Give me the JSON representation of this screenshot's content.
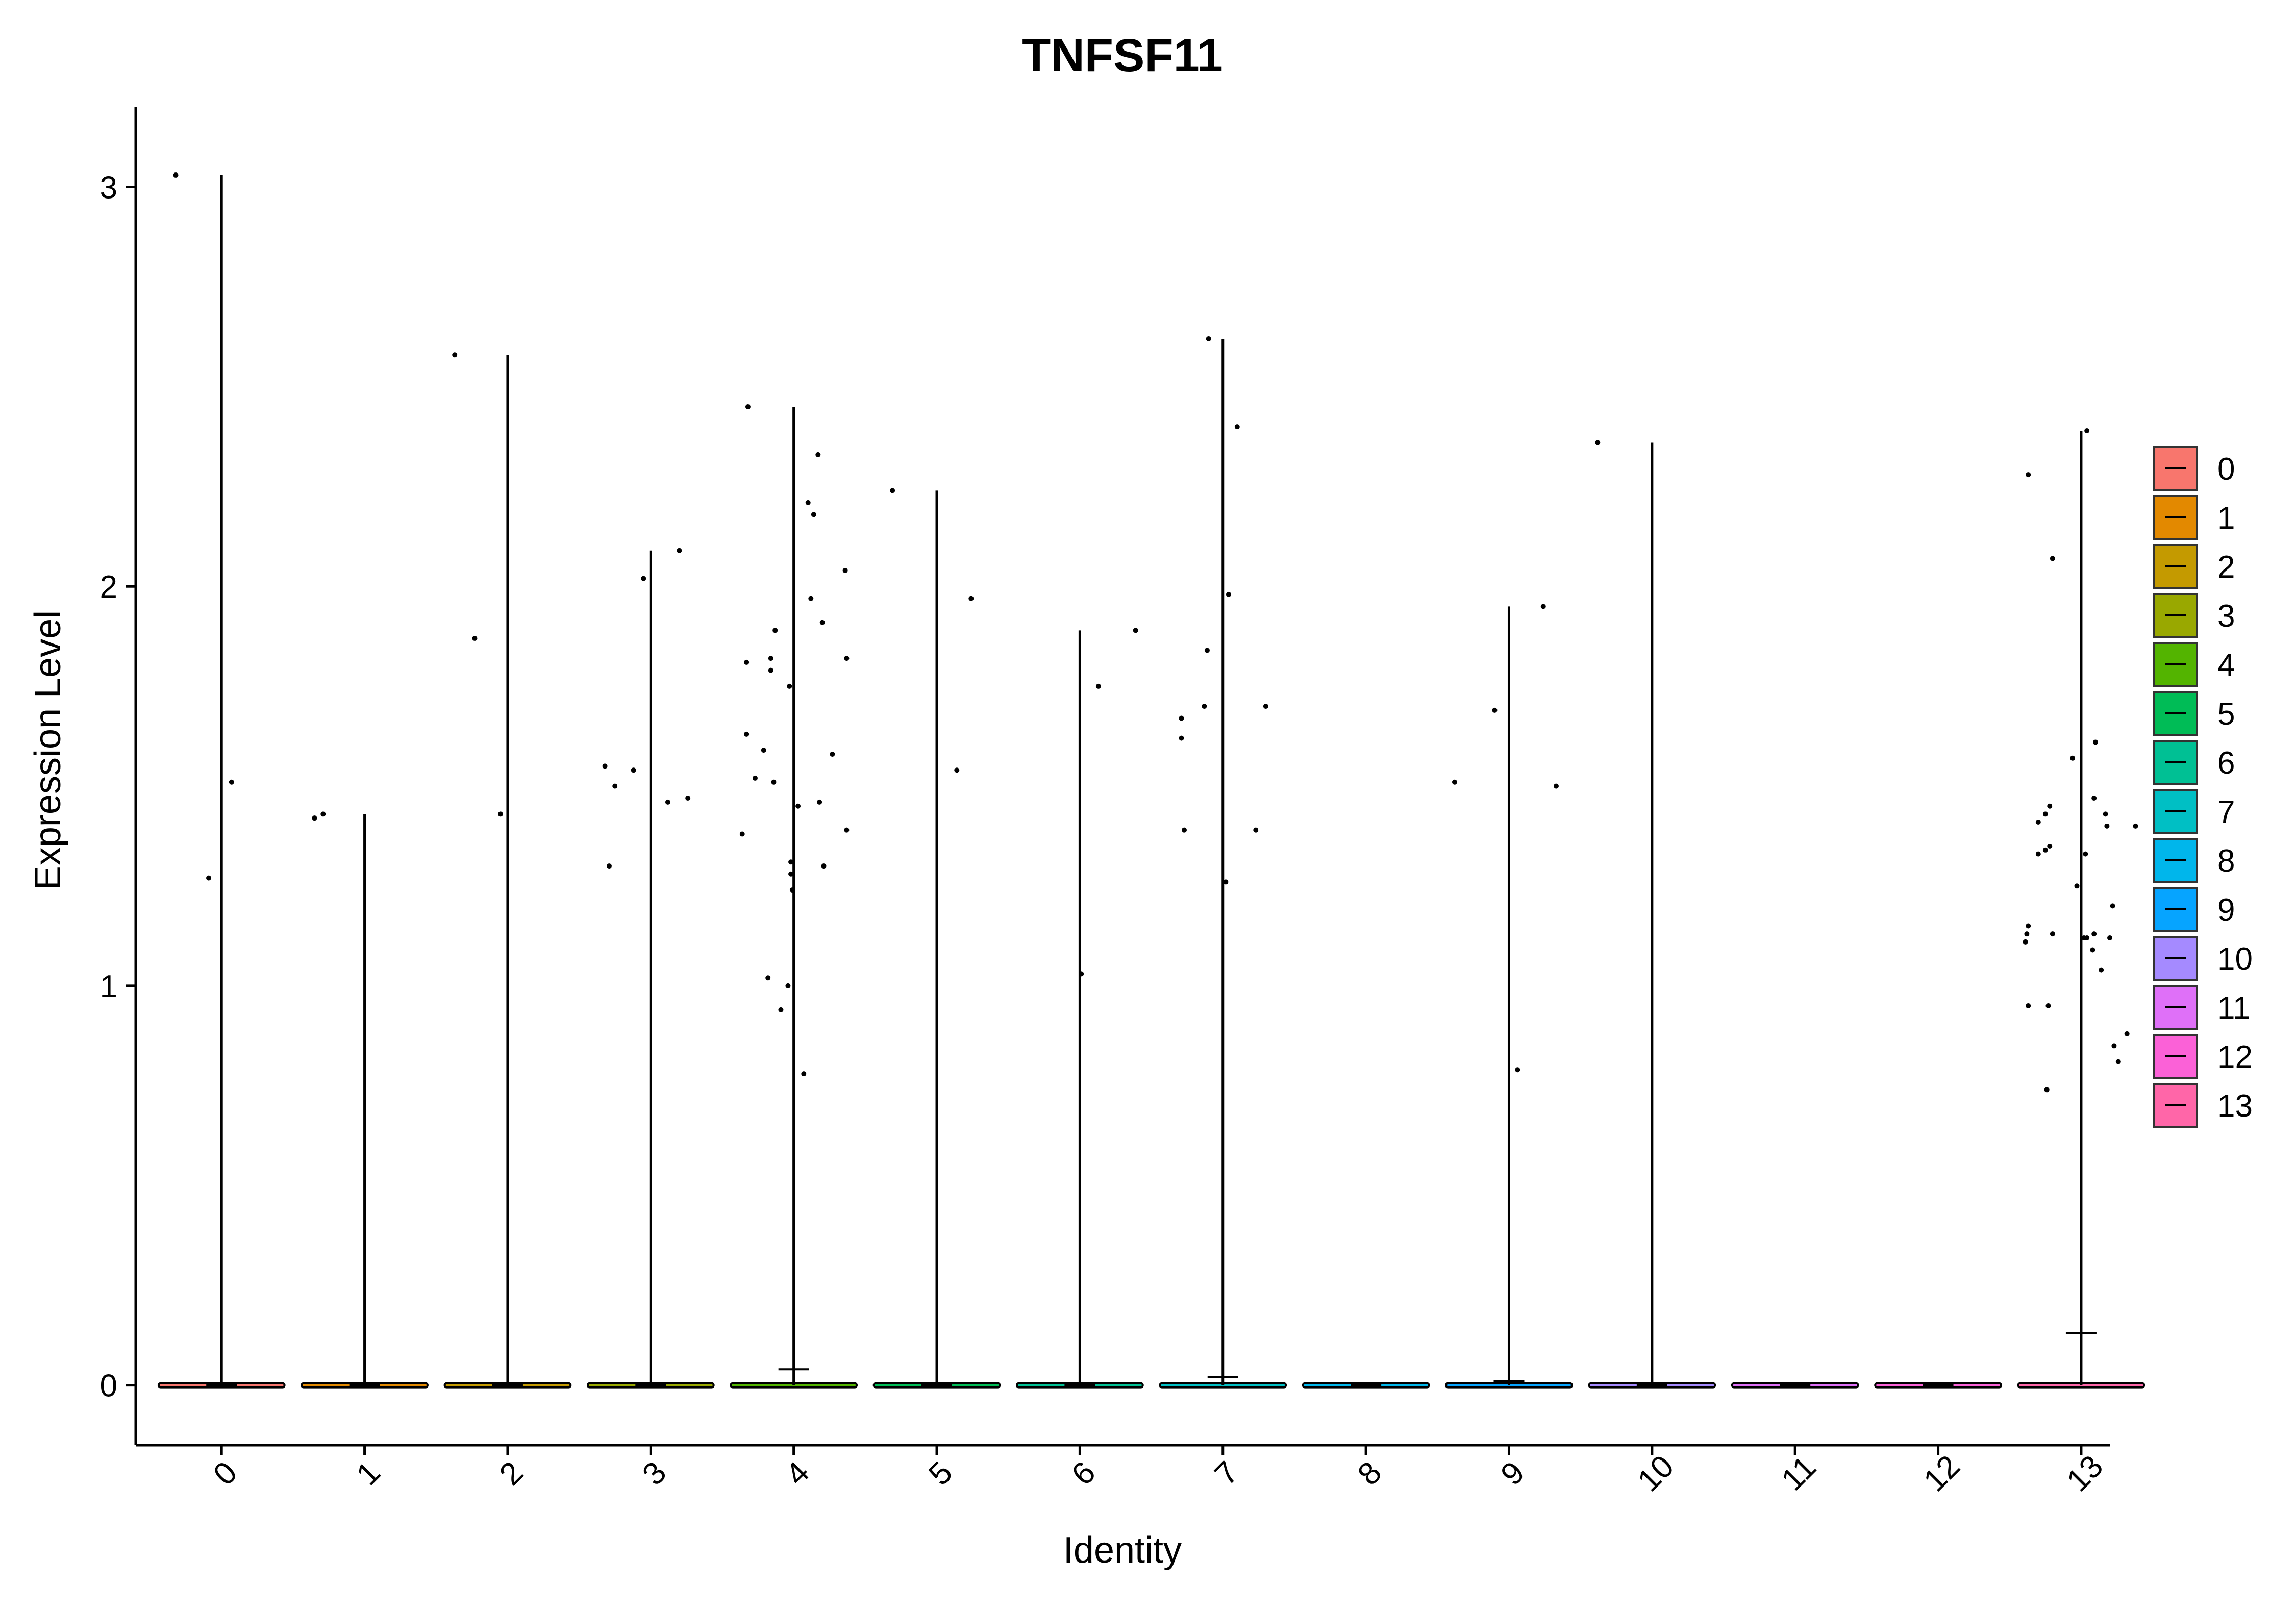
{
  "chart_data": {
    "type": "violin",
    "title": "TNFSF11",
    "xlabel": "Identity",
    "ylabel": "Expression Level",
    "categories": [
      "0",
      "1",
      "2",
      "3",
      "4",
      "5",
      "6",
      "7",
      "8",
      "9",
      "10",
      "11",
      "12",
      "13"
    ],
    "y_ticks": [
      0,
      1,
      2,
      3
    ],
    "ylim": [
      -0.15,
      3.2
    ],
    "legend_title": "",
    "legend_position": "right",
    "colors": [
      "#F8766D",
      "#E38900",
      "#C49A00",
      "#99A800",
      "#53B400",
      "#00BC56",
      "#00C094",
      "#00BFC4",
      "#00B6EB",
      "#06A4FF",
      "#A58AFF",
      "#DF70F8",
      "#FB61D7",
      "#FF66A8"
    ],
    "series": [
      {
        "name": "0",
        "max": 3.03,
        "median": 0.0,
        "points": [
          [
            -0.32,
            3.03
          ],
          [
            0.07,
            1.51
          ],
          [
            -0.09,
            1.27
          ]
        ]
      },
      {
        "name": "1",
        "max": 1.43,
        "median": 0.0,
        "points": [
          [
            -0.35,
            1.42
          ],
          [
            -0.29,
            1.43
          ]
        ]
      },
      {
        "name": "2",
        "max": 2.58,
        "median": 0.0,
        "points": [
          [
            -0.37,
            2.58
          ],
          [
            -0.23,
            1.87
          ],
          [
            -0.05,
            1.43
          ]
        ]
      },
      {
        "name": "3",
        "max": 2.09,
        "median": 0.0,
        "points": [
          [
            -0.05,
            2.02
          ],
          [
            0.2,
            2.09
          ],
          [
            -0.32,
            1.55
          ],
          [
            -0.25,
            1.5
          ],
          [
            -0.12,
            1.54
          ],
          [
            0.12,
            1.46
          ],
          [
            0.26,
            1.47
          ],
          [
            -0.29,
            1.3
          ]
        ]
      },
      {
        "name": "4",
        "max": 2.45,
        "median": 0.04,
        "points": [
          [
            -0.32,
            2.45
          ],
          [
            0.17,
            2.33
          ],
          [
            0.1,
            2.21
          ],
          [
            0.14,
            2.18
          ],
          [
            0.36,
            2.04
          ],
          [
            0.12,
            1.97
          ],
          [
            0.2,
            1.91
          ],
          [
            -0.13,
            1.89
          ],
          [
            -0.16,
            1.82
          ],
          [
            0.37,
            1.82
          ],
          [
            -0.33,
            1.81
          ],
          [
            -0.16,
            1.79
          ],
          [
            -0.03,
            1.75
          ],
          [
            -0.33,
            1.63
          ],
          [
            -0.21,
            1.59
          ],
          [
            0.27,
            1.58
          ],
          [
            -0.27,
            1.52
          ],
          [
            -0.14,
            1.51
          ],
          [
            0.18,
            1.46
          ],
          [
            0.03,
            1.45
          ],
          [
            0.37,
            1.39
          ],
          [
            -0.36,
            1.38
          ],
          [
            -0.02,
            1.31
          ],
          [
            0.21,
            1.3
          ],
          [
            -0.02,
            1.28
          ],
          [
            -0.01,
            1.24
          ],
          [
            -0.18,
            1.02
          ],
          [
            -0.04,
            1.0
          ],
          [
            -0.09,
            0.94
          ],
          [
            0.07,
            0.78
          ]
        ]
      },
      {
        "name": "5",
        "max": 2.24,
        "median": 0.0,
        "points": [
          [
            -0.31,
            2.24
          ],
          [
            0.24,
            1.97
          ],
          [
            0.14,
            1.54
          ]
        ]
      },
      {
        "name": "6",
        "max": 1.89,
        "median": 0.0,
        "points": [
          [
            0.39,
            1.89
          ],
          [
            0.13,
            1.75
          ],
          [
            0.01,
            1.03
          ]
        ]
      },
      {
        "name": "7",
        "max": 2.62,
        "median": 0.02,
        "points": [
          [
            -0.1,
            2.62
          ],
          [
            0.1,
            2.4
          ],
          [
            0.04,
            1.98
          ],
          [
            -0.11,
            1.84
          ],
          [
            0.3,
            1.7
          ],
          [
            -0.13,
            1.7
          ],
          [
            -0.29,
            1.67
          ],
          [
            -0.29,
            1.62
          ],
          [
            0.23,
            1.39
          ],
          [
            -0.27,
            1.39
          ],
          [
            0.02,
            1.26
          ]
        ]
      },
      {
        "name": "8",
        "max": 0.0,
        "median": 0.0,
        "points": []
      },
      {
        "name": "9",
        "max": 1.95,
        "median": 0.01,
        "points": [
          [
            0.24,
            1.95
          ],
          [
            -0.1,
            1.69
          ],
          [
            0.33,
            1.5
          ],
          [
            -0.38,
            1.51
          ],
          [
            0.06,
            0.79
          ]
        ]
      },
      {
        "name": "10",
        "max": 2.36,
        "median": 0.0,
        "points": [
          [
            -0.38,
            2.36
          ]
        ]
      },
      {
        "name": "11",
        "max": 0.0,
        "median": 0.0,
        "points": []
      },
      {
        "name": "12",
        "max": 0.0,
        "median": 0.0,
        "points": []
      },
      {
        "name": "13",
        "max": 2.39,
        "median": 0.13,
        "points": [
          [
            0.04,
            2.39
          ],
          [
            -0.37,
            2.28
          ],
          [
            -0.2,
            2.07
          ],
          [
            0.1,
            1.61
          ],
          [
            -0.06,
            1.57
          ],
          [
            0.09,
            1.47
          ],
          [
            -0.22,
            1.45
          ],
          [
            -0.25,
            1.43
          ],
          [
            0.17,
            1.43
          ],
          [
            -0.3,
            1.41
          ],
          [
            0.18,
            1.4
          ],
          [
            0.38,
            1.4
          ],
          [
            -0.22,
            1.35
          ],
          [
            -0.25,
            1.34
          ],
          [
            -0.3,
            1.33
          ],
          [
            0.03,
            1.33
          ],
          [
            -0.03,
            1.25
          ],
          [
            0.22,
            1.2
          ],
          [
            -0.37,
            1.15
          ],
          [
            -0.38,
            1.13
          ],
          [
            -0.2,
            1.13
          ],
          [
            0.09,
            1.13
          ],
          [
            0.02,
            1.12
          ],
          [
            0.04,
            1.12
          ],
          [
            0.2,
            1.12
          ],
          [
            -0.39,
            1.11
          ],
          [
            0.08,
            1.09
          ],
          [
            0.14,
            1.04
          ],
          [
            -0.37,
            0.95
          ],
          [
            -0.23,
            0.95
          ],
          [
            0.32,
            0.88
          ],
          [
            0.23,
            0.85
          ],
          [
            0.26,
            0.81
          ],
          [
            -0.24,
            0.74
          ]
        ]
      }
    ]
  }
}
